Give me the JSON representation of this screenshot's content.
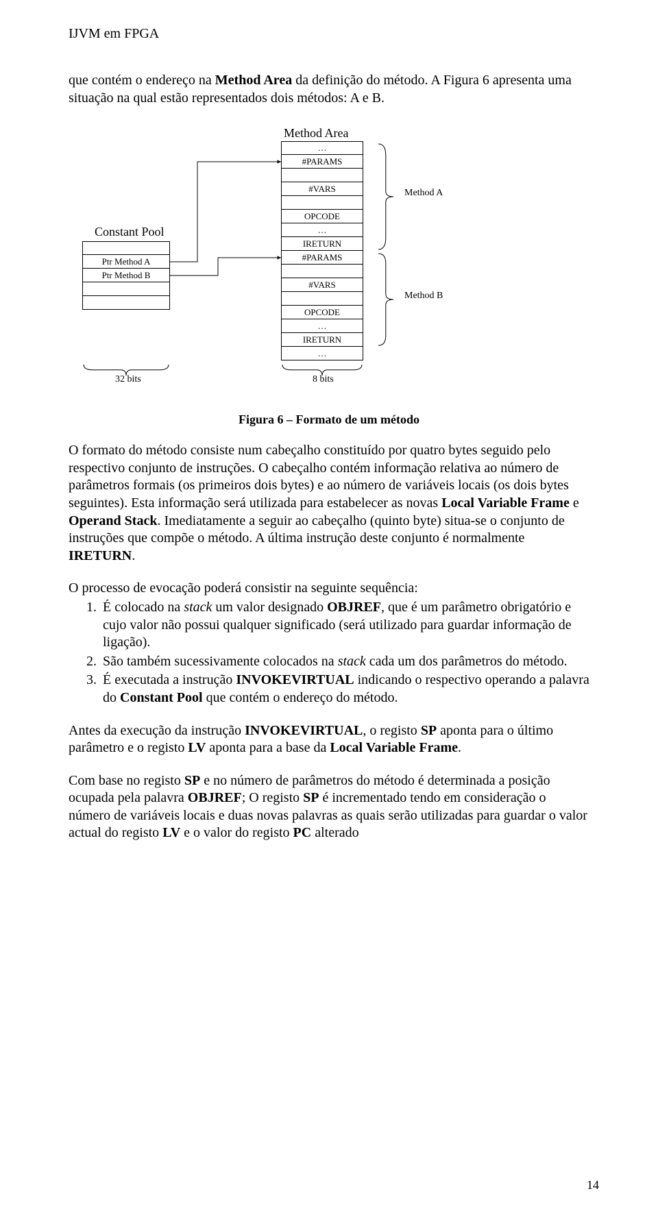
{
  "header": "IJVM em FPGA",
  "intro": "que contém o endereço na <b>Method Area</b> da definição do método. A Figura 6 apresenta uma situação na qual estão representados dois métodos: A e B.",
  "diagram": {
    "methodAreaTitle": "Method Area",
    "constantPoolTitle": "Constant Pool",
    "labelMethodA": "Method A",
    "labelMethodB": "Method B",
    "bits32": "32 bits",
    "bits8": "8 bits",
    "constantPool": {
      "rows": [
        "",
        "Ptr Method A",
        "Ptr Method B",
        "",
        ""
      ]
    },
    "methodArea": {
      "rows": [
        "…",
        "#PARAMS",
        "",
        "#VARS",
        "",
        "OPCODE",
        "…",
        "IRETURN",
        "#PARAMS",
        "",
        "#VARS",
        "",
        "OPCODE",
        "…",
        "IRETURN",
        "…"
      ]
    }
  },
  "caption": "Figura 6 – Formato de um método",
  "para1": "O formato do método consiste num cabeçalho constituído por quatro bytes seguido pelo respectivo conjunto de instruções. O cabeçalho contém informação relativa ao número de parâmetros formais (os primeiros dois bytes) e ao número de variáveis locais (os dois bytes seguintes). Esta informação será utilizada para estabelecer as novas <b>Local Variable Frame</b> e <b>Operand Stack</b>. Imediatamente a seguir ao cabeçalho (quinto byte) situa-se o conjunto de instruções que compõe o método. A última instrução deste conjunto é normalmente <b>IRETURN</b>.",
  "listIntro": "O processo de evocação poderá consistir na seguinte sequência:",
  "list": [
    "É colocado na <i>stack</i> um valor designado <b>OBJREF</b>, que é um parâmetro obrigatório e cujo valor não possui qualquer significado (será utilizado para guardar informação de ligação).",
    "São também sucessivamente colocados na <i>stack</i> cada um dos parâmetros do método.",
    "É executada a instrução <b>INVOKEVIRTUAL</b> indicando o respectivo operando a palavra do <b>Constant Pool</b> que contém o endereço do método."
  ],
  "para2": "Antes da execução da instrução <b>INVOKEVIRTUAL</b>, o registo <b>SP</b> aponta para o último parâmetro e o registo <b>LV</b> aponta para a base da <b>Local Variable Frame</b>.",
  "para3": "Com base no registo <b>SP</b> e no número de parâmetros do método é determinada a posição ocupada pela palavra <b>OBJREF</b>; O registo <b>SP</b> é incrementado tendo em consideração o número de variáveis locais e duas novas palavras as quais serão utilizadas para guardar o valor actual do registo <b>LV</b> e o valor do registo <b>PC</b> alterado",
  "pageNumber": "14",
  "layout": {
    "cpLeft": 20,
    "cpTop": 168,
    "cpCellW": 128,
    "cpCellH": 20,
    "maLeft": 310,
    "maTop": 22,
    "maCellW": 120,
    "maCellH": 20,
    "braceALeft": 452,
    "braceATop": 24,
    "braceAH": 158,
    "braceBLeft": 452,
    "braceBTop": 184,
    "braceBH": 138,
    "labelMethodALeft": 490,
    "labelMethodATop": 90,
    "labelMethodBLeft": 490,
    "labelMethodBTop": 240,
    "bitsBraceCpLeft": 20,
    "bitsBraceCpTop": 348,
    "bitsBraceCpW": 128,
    "bitsBraceMaLeft": 310,
    "bitsBraceMaTop": 348,
    "bitsBraceMaW": 120,
    "bits32Left": 68,
    "bits32Top": 362,
    "bits8Left": 356,
    "bits8Top": 362,
    "methodAreaTitleLeft": 314,
    "methodAreaTitleTop": 0,
    "constantPoolTitleLeft": 38,
    "constantPoolTitleTop": 144
  }
}
